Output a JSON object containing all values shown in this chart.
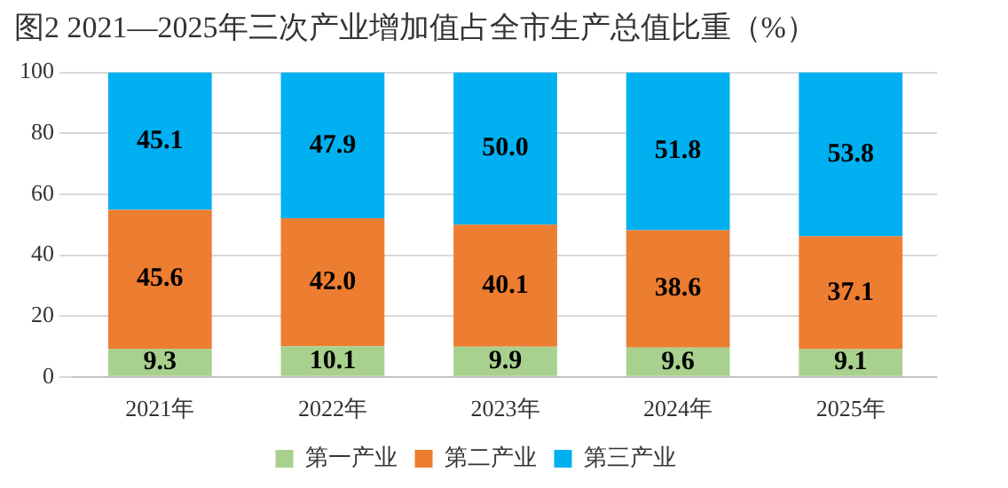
{
  "chart_data": {
    "type": "bar",
    "title": "图2 2021—2025年三次产业增加值占全市生产总值比重（%）",
    "categories": [
      "2021年",
      "2022年",
      "2023年",
      "2024年",
      "2025年"
    ],
    "stacked": true,
    "series": [
      {
        "name": "第一产业",
        "color": "#a9d18e",
        "values": [
          9.3,
          10.1,
          9.9,
          9.6,
          9.1
        ],
        "value_labels": [
          "9.3",
          "10.1",
          "9.9",
          "9.6",
          "9.1"
        ]
      },
      {
        "name": "第二产业",
        "color": "#ed7d31",
        "values": [
          45.6,
          42.0,
          40.1,
          38.6,
          37.1
        ],
        "value_labels": [
          "45.6",
          "42.0",
          "40.1",
          "38.6",
          "37.1"
        ]
      },
      {
        "name": "第三产业",
        "color": "#00b0f0",
        "values": [
          45.1,
          47.9,
          50.0,
          51.8,
          53.8
        ],
        "value_labels": [
          "45.1",
          "47.9",
          "50.0",
          "51.8",
          "53.8"
        ]
      }
    ],
    "ylim": [
      0,
      100
    ],
    "yticks": [
      0,
      20,
      40,
      60,
      80,
      100
    ],
    "grid": "y",
    "legend": "bottom"
  }
}
